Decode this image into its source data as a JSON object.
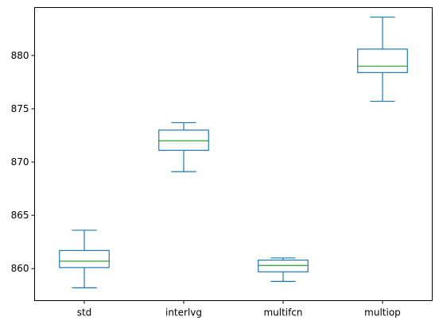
{
  "chart_data": {
    "type": "box",
    "title": "",
    "xlabel": "",
    "ylabel": "",
    "categories": [
      "std",
      "interlvg",
      "multifcn",
      "multiop"
    ],
    "boxes": [
      {
        "name": "std",
        "whislo": 858.2,
        "q1": 860.1,
        "med": 860.7,
        "q3": 861.7,
        "whishi": 863.6
      },
      {
        "name": "interlvg",
        "whislo": 869.1,
        "q1": 871.1,
        "med": 872.0,
        "q3": 873.0,
        "whishi": 873.7
      },
      {
        "name": "multifcn",
        "whislo": 858.8,
        "q1": 859.7,
        "med": 860.3,
        "q3": 860.8,
        "whishi": 861.0
      },
      {
        "name": "multiop",
        "whislo": 875.7,
        "q1": 878.4,
        "med": 879.0,
        "q3": 880.6,
        "whishi": 883.6
      }
    ],
    "yticks": [
      860,
      865,
      870,
      875,
      880
    ],
    "ytick_labels": [
      "860",
      "865",
      "870",
      "875",
      "880"
    ],
    "ylim": [
      857.0,
      884.5
    ],
    "grid": false,
    "colors": {
      "box": "#1f77b4",
      "median": "#2ca02c",
      "axes": "#000000"
    }
  }
}
